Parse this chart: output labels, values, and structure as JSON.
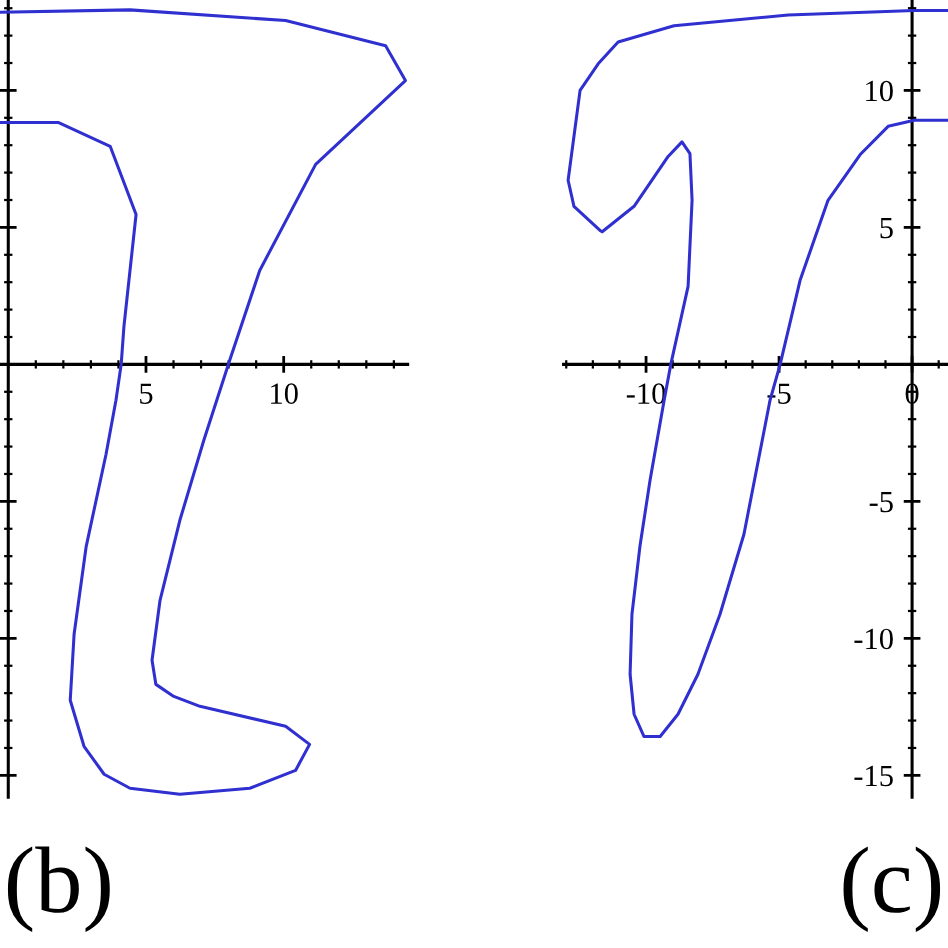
{
  "chart_data": [
    {
      "type": "line",
      "xlim": [
        -0.3,
        14.5
      ],
      "ylim": [
        -15.8,
        13.3
      ],
      "xticks": [
        5,
        10
      ],
      "yticks": [
        {
          "value": -15,
          "label": null
        },
        {
          "value": -10,
          "label": null
        },
        {
          "value": -5,
          "label": null
        },
        {
          "value": 5,
          "label": null
        },
        {
          "value": 10,
          "label": null
        }
      ],
      "tick_labels": "x",
      "annotations": [
        "(b)"
      ],
      "series": [
        {
          "color": "#3030d0",
          "x": [
            -0.3,
            4.42,
            10.07,
            13.7,
            14.42,
            11.16,
            9.13,
            8.04,
            7.1,
            6.23,
            5.51,
            5.22,
            5.36,
            6.01,
            6.96,
            10.07,
            10.94,
            10.43,
            8.77,
            6.23,
            4.42,
            3.48,
            2.75,
            2.25,
            2.39,
            2.83,
            3.55,
            3.91,
            4.1,
            4.2,
            4.64,
            3.7,
            1.81,
            -0.3
          ],
          "values": [
            12.85,
            12.94,
            12.55,
            11.63,
            10.36,
            7.3,
            3.43,
            0.15,
            -2.77,
            -5.69,
            -8.61,
            -10.8,
            -11.68,
            -12.12,
            -12.48,
            -13.21,
            -13.87,
            -14.82,
            -15.47,
            -15.69,
            -15.47,
            -14.96,
            -13.94,
            -12.26,
            -9.85,
            -6.64,
            -3.28,
            -1.31,
            0,
            1.39,
            5.47,
            7.96,
            8.83,
            8.83
          ]
        }
      ]
    },
    {
      "type": "line",
      "xlim": [
        -13.1,
        1.35
      ],
      "ylim": [
        -15.8,
        13.3
      ],
      "xticks": [
        -10,
        -5,
        0
      ],
      "yticks": [
        -15,
        -10,
        -5,
        5,
        10
      ],
      "annotations": [
        "(c)"
      ],
      "series": [
        {
          "color": "#3030d0",
          "x": [
            1.35,
            0.08,
            -4.66,
            -8.95,
            -11.05,
            -11.8,
            -12.48,
            -12.93,
            -12.71,
            -11.73,
            -11.65,
            -10.45,
            -9.17,
            -8.65,
            -8.35,
            -8.27,
            -8.42,
            -9.07,
            -9.32,
            -9.85,
            -10.23,
            -10.53,
            -10.6,
            -10.45,
            -10.08,
            -9.47,
            -8.8,
            -8.05,
            -7.22,
            -6.32,
            -5.34,
            -4.96,
            -4.21,
            -3.16,
            -1.95,
            -0.9,
            0.08,
            1.35
          ],
          "values": [
            12.92,
            12.92,
            12.75,
            12.36,
            11.77,
            10.97,
            10.0,
            6.72,
            5.77,
            4.89,
            4.84,
            5.77,
            7.59,
            8.12,
            7.69,
            5.99,
            2.85,
            0,
            -1.31,
            -4.23,
            -6.64,
            -9.12,
            -11.31,
            -12.77,
            -13.58,
            -13.58,
            -12.77,
            -11.31,
            -9.12,
            -6.2,
            -1.31,
            0,
            3.07,
            5.99,
            7.66,
            8.69,
            8.91,
            8.91
          ]
        }
      ]
    }
  ]
}
